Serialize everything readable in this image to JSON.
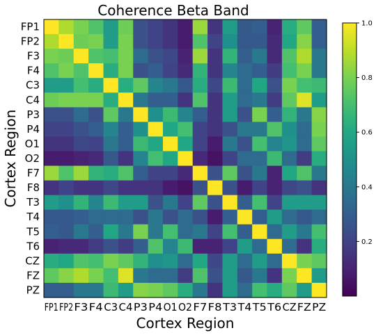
{
  "chart_data": {
    "type": "heatmap",
    "title": "Coherence Beta Band",
    "xlabel": "Cortex Region",
    "ylabel": "Cortex Region",
    "labels": [
      "FP1",
      "FP2",
      "F3",
      "F4",
      "C3",
      "C4",
      "P3",
      "P4",
      "O1",
      "O2",
      "F7",
      "F8",
      "T3",
      "T4",
      "T5",
      "T6",
      "CZ",
      "FZ",
      "PZ"
    ],
    "values": [
      [
        1.0,
        0.88,
        0.8,
        0.72,
        0.55,
        0.78,
        0.25,
        0.2,
        0.15,
        0.08,
        0.85,
        0.15,
        0.55,
        0.28,
        0.3,
        0.1,
        0.62,
        0.75,
        0.3
      ],
      [
        0.88,
        1.0,
        0.78,
        0.8,
        0.55,
        0.8,
        0.25,
        0.2,
        0.15,
        0.08,
        0.72,
        0.2,
        0.5,
        0.28,
        0.28,
        0.12,
        0.6,
        0.82,
        0.3
      ],
      [
        0.8,
        0.78,
        1.0,
        0.72,
        0.7,
        0.8,
        0.35,
        0.25,
        0.22,
        0.1,
        0.85,
        0.15,
        0.65,
        0.3,
        0.4,
        0.12,
        0.72,
        0.88,
        0.4
      ],
      [
        0.72,
        0.8,
        0.72,
        1.0,
        0.62,
        0.8,
        0.25,
        0.3,
        0.2,
        0.12,
        0.65,
        0.15,
        0.45,
        0.35,
        0.3,
        0.18,
        0.7,
        0.8,
        0.4
      ],
      [
        0.55,
        0.55,
        0.7,
        0.62,
        1.0,
        0.62,
        0.75,
        0.45,
        0.4,
        0.28,
        0.62,
        0.22,
        0.68,
        0.35,
        0.6,
        0.25,
        0.8,
        0.7,
        0.68
      ],
      [
        0.78,
        0.8,
        0.8,
        0.8,
        0.62,
        1.0,
        0.4,
        0.3,
        0.3,
        0.15,
        0.72,
        0.15,
        0.55,
        0.35,
        0.4,
        0.18,
        0.75,
        0.95,
        0.55
      ],
      [
        0.25,
        0.25,
        0.35,
        0.25,
        0.75,
        0.4,
        1.0,
        0.5,
        0.68,
        0.45,
        0.3,
        0.15,
        0.55,
        0.25,
        0.8,
        0.3,
        0.65,
        0.4,
        0.82
      ],
      [
        0.2,
        0.2,
        0.25,
        0.3,
        0.45,
        0.3,
        0.5,
        1.0,
        0.6,
        0.7,
        0.2,
        0.15,
        0.25,
        0.4,
        0.4,
        0.72,
        0.5,
        0.35,
        0.8
      ],
      [
        0.15,
        0.15,
        0.22,
        0.2,
        0.4,
        0.3,
        0.68,
        0.6,
        1.0,
        0.6,
        0.2,
        0.08,
        0.4,
        0.25,
        0.7,
        0.45,
        0.52,
        0.35,
        0.75
      ],
      [
        0.08,
        0.08,
        0.1,
        0.12,
        0.28,
        0.15,
        0.45,
        0.7,
        0.6,
        1.0,
        0.12,
        0.05,
        0.2,
        0.35,
        0.35,
        0.68,
        0.35,
        0.18,
        0.62
      ],
      [
        0.85,
        0.72,
        0.85,
        0.65,
        0.62,
        0.72,
        0.3,
        0.2,
        0.2,
        0.12,
        1.0,
        0.25,
        0.75,
        0.25,
        0.4,
        0.1,
        0.6,
        0.72,
        0.4
      ],
      [
        0.15,
        0.2,
        0.15,
        0.15,
        0.22,
        0.15,
        0.15,
        0.15,
        0.08,
        0.05,
        0.25,
        1.0,
        0.25,
        0.08,
        0.2,
        0.1,
        0.22,
        0.25,
        0.15
      ],
      [
        0.55,
        0.5,
        0.65,
        0.45,
        0.68,
        0.55,
        0.55,
        0.25,
        0.4,
        0.2,
        0.75,
        0.25,
        1.0,
        0.3,
        0.7,
        0.2,
        0.55,
        0.55,
        0.55
      ],
      [
        0.28,
        0.28,
        0.3,
        0.35,
        0.35,
        0.35,
        0.25,
        0.4,
        0.25,
        0.35,
        0.25,
        0.08,
        0.3,
        1.0,
        0.3,
        0.55,
        0.35,
        0.28,
        0.35
      ],
      [
        0.3,
        0.28,
        0.4,
        0.3,
        0.6,
        0.4,
        0.8,
        0.4,
        0.7,
        0.35,
        0.4,
        0.2,
        0.7,
        0.3,
        1.0,
        0.35,
        0.55,
        0.4,
        0.7
      ],
      [
        0.1,
        0.12,
        0.12,
        0.18,
        0.25,
        0.18,
        0.3,
        0.72,
        0.45,
        0.68,
        0.1,
        0.1,
        0.2,
        0.55,
        0.35,
        1.0,
        0.35,
        0.15,
        0.62
      ],
      [
        0.62,
        0.6,
        0.72,
        0.7,
        0.8,
        0.75,
        0.65,
        0.5,
        0.52,
        0.35,
        0.6,
        0.22,
        0.55,
        0.35,
        0.55,
        0.35,
        1.0,
        0.8,
        0.75
      ],
      [
        0.75,
        0.82,
        0.88,
        0.8,
        0.7,
        0.95,
        0.4,
        0.35,
        0.35,
        0.18,
        0.72,
        0.25,
        0.55,
        0.28,
        0.4,
        0.15,
        0.8,
        1.0,
        0.55
      ],
      [
        0.3,
        0.3,
        0.4,
        0.4,
        0.68,
        0.55,
        0.82,
        0.8,
        0.75,
        0.62,
        0.4,
        0.15,
        0.55,
        0.35,
        0.7,
        0.62,
        0.75,
        0.55,
        1.0
      ]
    ],
    "vmin": 0.0,
    "vmax": 1.0,
    "colormap": "viridis",
    "colorbar": {
      "ticks": [
        0.2,
        0.4,
        0.6,
        0.8,
        1.0
      ],
      "tick_labels": [
        "0.2",
        "0.4",
        "0.6",
        "0.8",
        "1.0"
      ],
      "placement": "right"
    },
    "grid": false
  }
}
